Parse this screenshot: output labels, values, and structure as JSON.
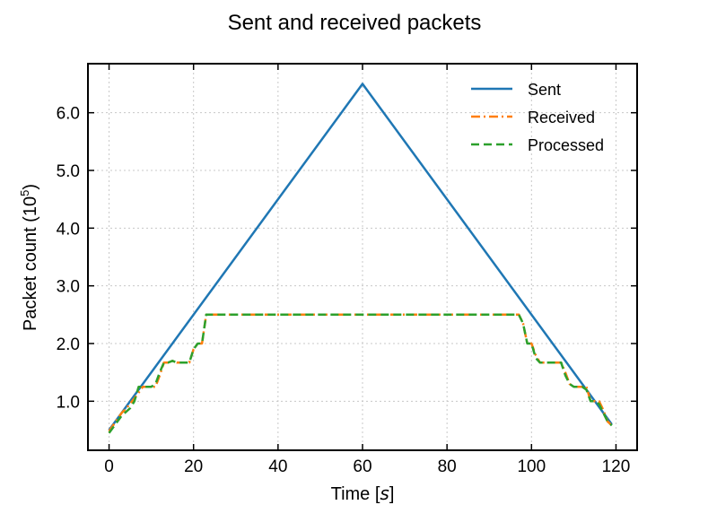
{
  "chart_data": {
    "type": "line",
    "title": "Sent and received packets",
    "xlabel_text": "Time [",
    "xlabel_unit": "s",
    "xlabel_close": "]",
    "ylabel_text": "Packet count (10",
    "ylabel_exp": "5",
    "ylabel_close": ")",
    "xlim": [
      -5,
      125
    ],
    "ylim": [
      0.15,
      6.85
    ],
    "xticks": [
      0,
      20,
      40,
      60,
      80,
      100,
      120
    ],
    "xtick_labels": [
      "0",
      "20",
      "40",
      "60",
      "80",
      "100",
      "120"
    ],
    "yticks": [
      1.0,
      2.0,
      3.0,
      4.0,
      5.0,
      6.0
    ],
    "ytick_labels": [
      "1.0",
      "2.0",
      "3.0",
      "4.0",
      "5.0",
      "6.0"
    ],
    "grid": true,
    "legend_position": "top-right",
    "series": [
      {
        "name": "Sent",
        "color": "#1f77b4",
        "style": "solid",
        "x": [
          0,
          60,
          119
        ],
        "y": [
          0.5,
          6.5,
          0.6
        ]
      },
      {
        "name": "Received",
        "color": "#ff7f0e",
        "style": "dashdot",
        "x": [
          0,
          3,
          4,
          6,
          7,
          8,
          11,
          12,
          13,
          14,
          15,
          16,
          18,
          19,
          20,
          21,
          22,
          23,
          24,
          30,
          40,
          50,
          60,
          70,
          80,
          90,
          97,
          98,
          99,
          100,
          101,
          102,
          103,
          104,
          106,
          107,
          108,
          109,
          110,
          112,
          113,
          114,
          115,
          116,
          117,
          118,
          119
        ],
        "y": [
          0.48,
          0.8,
          0.87,
          1.05,
          1.15,
          1.25,
          1.25,
          1.45,
          1.67,
          1.67,
          1.7,
          1.67,
          1.67,
          1.67,
          1.9,
          2.0,
          2.0,
          2.5,
          2.5,
          2.5,
          2.5,
          2.5,
          2.5,
          2.5,
          2.5,
          2.5,
          2.5,
          2.35,
          2.0,
          2.0,
          1.8,
          1.67,
          1.67,
          1.67,
          1.67,
          1.67,
          1.5,
          1.3,
          1.25,
          1.25,
          1.25,
          1.0,
          1.0,
          1.0,
          0.85,
          0.65,
          0.58
        ]
      },
      {
        "name": "Processed",
        "color": "#2ca02c",
        "style": "dashed",
        "x": [
          0,
          3,
          5,
          6,
          7,
          8,
          10,
          11,
          12,
          13,
          14,
          15,
          16,
          18,
          19,
          20,
          21,
          22,
          23,
          24,
          30,
          40,
          50,
          60,
          70,
          80,
          90,
          97,
          98,
          99,
          100,
          101,
          102,
          103,
          104,
          106,
          107,
          108,
          109,
          110,
          112,
          113,
          114,
          115,
          116,
          117,
          118,
          119
        ],
        "y": [
          0.45,
          0.75,
          0.88,
          1.0,
          1.25,
          1.25,
          1.25,
          1.3,
          1.5,
          1.67,
          1.67,
          1.7,
          1.67,
          1.67,
          1.67,
          1.9,
          2.0,
          2.0,
          2.5,
          2.5,
          2.5,
          2.5,
          2.5,
          2.5,
          2.5,
          2.5,
          2.5,
          2.5,
          2.35,
          2.0,
          2.0,
          1.75,
          1.67,
          1.67,
          1.67,
          1.67,
          1.67,
          1.45,
          1.3,
          1.25,
          1.25,
          1.2,
          1.0,
          1.0,
          0.95,
          0.8,
          0.65,
          0.58
        ]
      }
    ]
  }
}
